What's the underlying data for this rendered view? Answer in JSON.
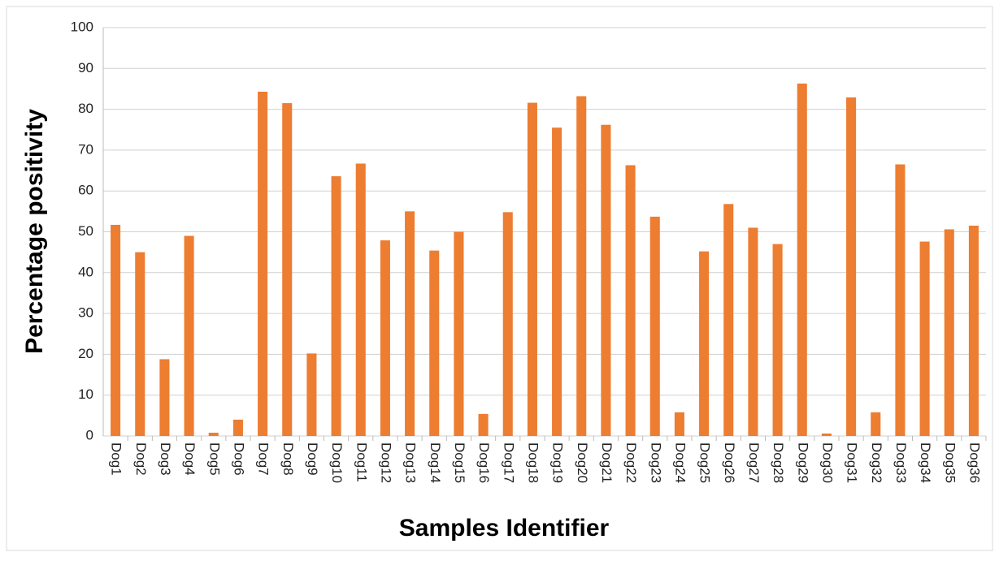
{
  "chart_data": {
    "type": "bar",
    "x_label": "Samples Identifier",
    "y_label": "Percentage positivity",
    "categories": [
      "Dog1",
      "Dog2",
      "Dog3",
      "Dog4",
      "Dog5",
      "Dog6",
      "Dog7",
      "Dog8",
      "Dog9",
      "Dog10",
      "Dog11",
      "Dog12",
      "Dog13",
      "Dog14",
      "Dog15",
      "Dog16",
      "Dog17",
      "Dog18",
      "Dog19",
      "Dog20",
      "Dog21",
      "Dog22",
      "Dog23",
      "Dog24",
      "Dog25",
      "Dog26",
      "Dog27",
      "Dog28",
      "Dog29",
      "Dog30",
      "Dog31",
      "Dog32",
      "Dog33",
      "Dog34",
      "Dog35",
      "Dog36"
    ],
    "values": [
      51.7,
      45,
      18.8,
      49,
      0.8,
      4,
      84.3,
      81.5,
      20.2,
      63.6,
      66.7,
      47.9,
      55,
      45.4,
      50,
      5.4,
      54.8,
      81.6,
      75.5,
      83.2,
      76.2,
      66.3,
      53.7,
      5.8,
      45.2,
      56.8,
      51,
      47,
      86.3,
      0.6,
      82.9,
      5.8,
      66.5,
      47.6,
      50.6,
      51.5
    ],
    "color": "#ed7d31",
    "ylim": [
      0,
      100
    ],
    "yticks": [
      0,
      10,
      20,
      30,
      40,
      50,
      60,
      70,
      80,
      90,
      100
    ],
    "grid": true
  }
}
